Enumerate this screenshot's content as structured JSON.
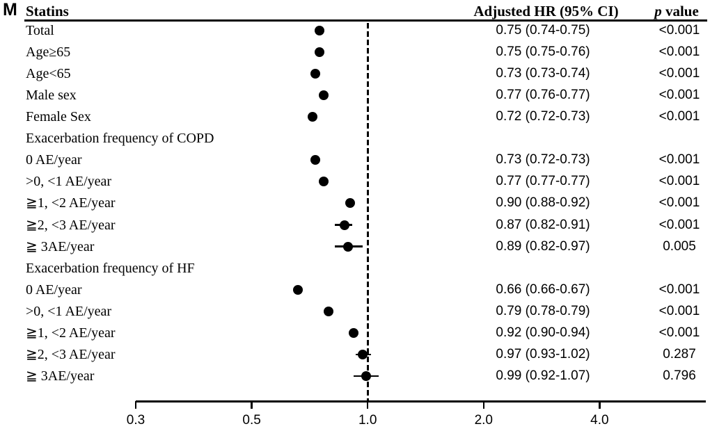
{
  "panel_label": "M",
  "columns": {
    "subgroup": "Statins",
    "hr": "Adjusted HR (95% CI)",
    "p_italic": "p",
    "p_rest": "value"
  },
  "colors": {
    "marker": "#000000",
    "text": "#000000",
    "background": "#ffffff"
  },
  "chart_data": {
    "type": "forest",
    "title": "Statins",
    "xlabel": "Adjusted HR (95% CI), log scale",
    "x_ticks": [
      "0.3",
      "0.5",
      "1.0",
      "2.0",
      "4.0"
    ],
    "x_tick_values": [
      0.3,
      0.5,
      1.0,
      2.0,
      4.0
    ],
    "reference_line": 1.0,
    "legend": "none",
    "rows": [
      {
        "label": "Total",
        "hr": 0.75,
        "lo": 0.74,
        "hi": 0.75,
        "hr_text": "0.75 (0.74-0.75)",
        "p": "<0.001"
      },
      {
        "label": "Age≥65",
        "hr": 0.75,
        "lo": 0.75,
        "hi": 0.76,
        "hr_text": "0.75 (0.75-0.76)",
        "p": "<0.001"
      },
      {
        "label": "Age<65",
        "hr": 0.73,
        "lo": 0.73,
        "hi": 0.74,
        "hr_text": "0.73 (0.73-0.74)",
        "p": "<0.001"
      },
      {
        "label": "Male sex",
        "hr": 0.77,
        "lo": 0.76,
        "hi": 0.77,
        "hr_text": "0.77 (0.76-0.77)",
        "p": "<0.001"
      },
      {
        "label": "Female Sex",
        "hr": 0.72,
        "lo": 0.72,
        "hi": 0.73,
        "hr_text": "0.72 (0.72-0.73)",
        "p": "<0.001"
      },
      {
        "label": "Exacerbation frequency of COPD",
        "hr": null,
        "lo": null,
        "hi": null,
        "hr_text": "",
        "p": ""
      },
      {
        "label": "0 AE/year",
        "hr": 0.73,
        "lo": 0.72,
        "hi": 0.73,
        "hr_text": "0.73 (0.72-0.73)",
        "p": "<0.001"
      },
      {
        "label": ">0, <1 AE/year",
        "hr": 0.77,
        "lo": 0.77,
        "hi": 0.77,
        "hr_text": "0.77 (0.77-0.77)",
        "p": "<0.001"
      },
      {
        "label": "≧1, <2 AE/year",
        "hr": 0.9,
        "lo": 0.88,
        "hi": 0.92,
        "hr_text": "0.90 (0.88-0.92)",
        "p": "<0.001"
      },
      {
        "label": "≧2, <3 AE/year",
        "hr": 0.87,
        "lo": 0.82,
        "hi": 0.91,
        "hr_text": "0.87 (0.82-0.91)",
        "p": "<0.001"
      },
      {
        "label": "≧ 3AE/year",
        "hr": 0.89,
        "lo": 0.82,
        "hi": 0.97,
        "hr_text": "0.89 (0.82-0.97)",
        "p": "0.005"
      },
      {
        "label": "Exacerbation frequency of HF",
        "hr": null,
        "lo": null,
        "hi": null,
        "hr_text": "",
        "p": ""
      },
      {
        "label": "0 AE/year",
        "hr": 0.66,
        "lo": 0.66,
        "hi": 0.67,
        "hr_text": "0.66 (0.66-0.67)",
        "p": "<0.001"
      },
      {
        "label": ">0, <1 AE/year",
        "hr": 0.79,
        "lo": 0.78,
        "hi": 0.79,
        "hr_text": "0.79 (0.78-0.79)",
        "p": "<0.001"
      },
      {
        "label": "≧1, <2 AE/year",
        "hr": 0.92,
        "lo": 0.9,
        "hi": 0.94,
        "hr_text": "0.92 (0.90-0.94)",
        "p": "<0.001"
      },
      {
        "label": "≧2, <3 AE/year",
        "hr": 0.97,
        "lo": 0.93,
        "hi": 1.02,
        "hr_text": "0.97 (0.93-1.02)",
        "p": "0.287"
      },
      {
        "label": "≧ 3AE/year",
        "hr": 0.99,
        "lo": 0.92,
        "hi": 1.07,
        "hr_text": "0.99 (0.92-1.07)",
        "p": "0.796"
      }
    ]
  }
}
